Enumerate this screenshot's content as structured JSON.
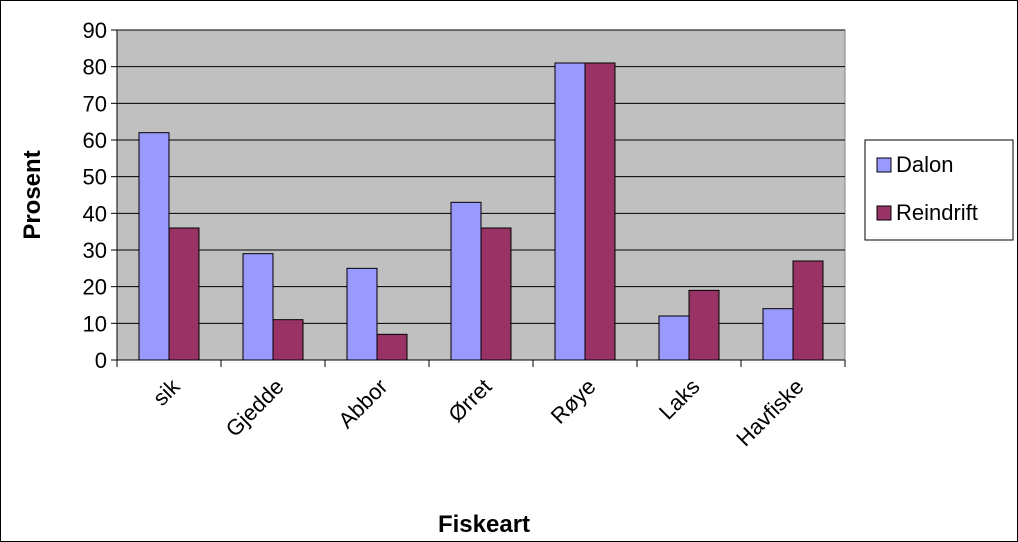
{
  "chart_data": {
    "type": "bar",
    "x_label": "Fiskeart",
    "y_label": "Prosent",
    "categories": [
      "sik",
      "Gjedde",
      "Abbor",
      "Ørret",
      "Røye",
      "Laks",
      "Havfiske"
    ],
    "series": [
      {
        "name": "Dalon",
        "color": "#9999ff",
        "values": [
          62,
          29,
          25,
          43,
          81,
          12,
          14
        ]
      },
      {
        "name": "Reindrift",
        "color": "#993366",
        "values": [
          36,
          11,
          7,
          36,
          81,
          19,
          27
        ]
      }
    ],
    "ylim": [
      0,
      90
    ],
    "yticks": [
      0,
      10,
      20,
      30,
      40,
      50,
      60,
      70,
      80,
      90
    ],
    "grid": true,
    "legend": "right"
  }
}
